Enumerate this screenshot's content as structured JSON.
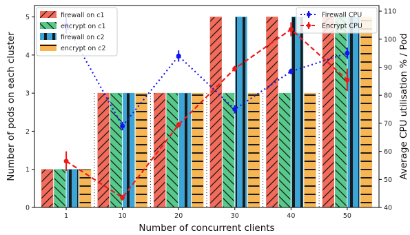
{
  "chart_data": {
    "type": "bar",
    "categories": [
      "1",
      "10",
      "20",
      "30",
      "40",
      "50"
    ],
    "xlabel": "Number of concurrent clients",
    "ylabel": "Number of pods on each cluster",
    "ylabel_right": "Average CPU utilisation % / Pod",
    "ylim": [
      0,
      5.3
    ],
    "ylim_right": [
      40,
      112
    ],
    "yticks": [
      0,
      1,
      2,
      3,
      4,
      5
    ],
    "yticks_right": [
      40,
      50,
      60,
      70,
      80,
      90,
      100,
      110
    ],
    "bar_series": [
      {
        "name": "firewall on c1",
        "color": "#f26b5b",
        "hatch": "diag-fwd",
        "values": [
          1,
          3,
          3,
          5,
          5,
          5
        ]
      },
      {
        "name": "encrypt on c1",
        "color": "#57c98b",
        "hatch": "diag-back",
        "values": [
          1,
          3,
          3,
          3,
          3,
          5
        ]
      },
      {
        "name": "firewall on c2",
        "color": "#3aa5d6",
        "hatch": "vertical",
        "values": [
          1,
          3,
          3,
          5,
          5,
          5
        ]
      },
      {
        "name": "encrypt on c2",
        "color": "#f6b654",
        "hatch": "horizontal",
        "values": [
          1,
          3,
          3,
          3,
          3,
          5
        ]
      }
    ],
    "line_series": [
      {
        "name": "Firewall CPU",
        "color": "#1414ee",
        "style": "dotted",
        "values": [
          105,
          69,
          94,
          75,
          88.5,
          95
        ],
        "errors": [
          3,
          1.5,
          2,
          1.5,
          1,
          2
        ]
      },
      {
        "name": "Encrypt CPU",
        "color": "#ee1a1a",
        "style": "dashed",
        "values": [
          56.5,
          43.5,
          69.5,
          89.5,
          103.5,
          85.5
        ],
        "errors": [
          3.5,
          1,
          1,
          1,
          2.5,
          4
        ]
      }
    ],
    "legend_left": "top-left",
    "legend_right": "top-right",
    "grid": false
  }
}
